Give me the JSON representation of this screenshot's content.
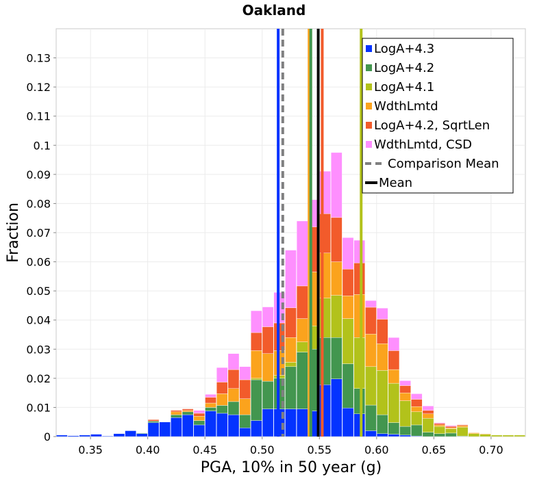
{
  "chart_data": {
    "type": "bar",
    "stacked": true,
    "title": "Oakland",
    "xlabel": "PGA, 10% in 50 year (g)",
    "ylabel": "Fraction",
    "xlim": [
      0.32,
      0.73
    ],
    "ylim": [
      0,
      0.14
    ],
    "x_ticks": [
      "0.35",
      "0.40",
      "0.45",
      "0.50",
      "0.55",
      "0.60",
      "0.65",
      "0.70"
    ],
    "y_ticks": [
      "0",
      "0.01",
      "0.02",
      "0.03",
      "0.04",
      "0.05",
      "0.06",
      "0.07",
      "0.08",
      "0.09",
      "0.1",
      "0.11",
      "0.12",
      "0.13"
    ],
    "grid": true,
    "legend_position": "top-right",
    "bin_width": 0.01,
    "bin_centers": [
      0.325,
      0.335,
      0.345,
      0.355,
      0.365,
      0.375,
      0.385,
      0.395,
      0.405,
      0.415,
      0.425,
      0.435,
      0.445,
      0.455,
      0.465,
      0.475,
      0.485,
      0.495,
      0.505,
      0.515,
      0.525,
      0.535,
      0.545,
      0.555,
      0.565,
      0.575,
      0.585,
      0.595,
      0.605,
      0.615,
      0.625,
      0.635,
      0.645,
      0.655,
      0.665,
      0.675,
      0.685,
      0.695,
      0.705,
      0.715,
      0.725
    ],
    "series": [
      {
        "name": "LogA+4.3",
        "color": "#0433ff",
        "values": [
          0.0005,
          0.0003,
          0.0005,
          0.0008,
          0.0002,
          0.001,
          0.002,
          0.001,
          0.0048,
          0.005,
          0.0065,
          0.0075,
          0.004,
          0.0088,
          0.008,
          0.0075,
          0.003,
          0.0055,
          0.0095,
          0.0095,
          0.0095,
          0.0095,
          0.0088,
          0.0178,
          0.0198,
          0.0098,
          0.0078,
          0.002,
          0.001,
          0.0008,
          0.0005,
          0.0002,
          0,
          0,
          0,
          0,
          0,
          0,
          0,
          0,
          0
        ]
      },
      {
        "name": "LogA+4.2",
        "color": "#43964f",
        "values": [
          0,
          0,
          0,
          0,
          0,
          0,
          0,
          0.0002,
          0.0005,
          0,
          0.001,
          0.001,
          0.0015,
          0.0012,
          0.0027,
          0.0045,
          0.0045,
          0.014,
          0.0095,
          0.0105,
          0.0145,
          0.0195,
          0.0212,
          0.0162,
          0.0142,
          0.0152,
          0.0087,
          0.0088,
          0.0065,
          0.004,
          0.003,
          0.0038,
          0.0015,
          0.001,
          0.0012,
          0.0002,
          0,
          0,
          0,
          0,
          0
        ]
      },
      {
        "name": "LogA+4.1",
        "color": "#b2c21b",
        "values": [
          0,
          0,
          0,
          0,
          0,
          0,
          0,
          0,
          0,
          0,
          0,
          0,
          0,
          0,
          0,
          0,
          0,
          0.0005,
          0,
          0.001,
          0.0015,
          0.0035,
          0.008,
          0.0135,
          0.0145,
          0.0155,
          0.0175,
          0.0132,
          0.0152,
          0.0135,
          0.0088,
          0.0045,
          0.0048,
          0.0025,
          0.0015,
          0.003,
          0.001,
          0.0008,
          0.0005,
          0.0005,
          0.0005
        ]
      },
      {
        "name": "WdthLmtd",
        "color": "#fba31d",
        "values": [
          0,
          0,
          0,
          0,
          0,
          0,
          0,
          0,
          0,
          0,
          0.001,
          0.0005,
          0.0015,
          0.0015,
          0.004,
          0.0045,
          0.0055,
          0.0095,
          0.0095,
          0.0085,
          0.0085,
          0.008,
          0.0185,
          0.0155,
          0.0115,
          0.0078,
          0.0148,
          0.0112,
          0.0092,
          0.0047,
          0.0027,
          0.0018,
          0.0015,
          0.0005,
          0.0003,
          0.0005,
          0.0003,
          0.0002,
          0,
          0,
          0
        ]
      },
      {
        "name": "LogA+4.2, SqrtLen",
        "color": "#f25b2b",
        "values": [
          0,
          0,
          0,
          0,
          0,
          0,
          0,
          0,
          0.0005,
          0,
          0.0005,
          0.0005,
          0.001,
          0.002,
          0.004,
          0.0065,
          0.0065,
          0.0062,
          0.0092,
          0.0095,
          0.0102,
          0.0112,
          0.0155,
          0.0135,
          0.0152,
          0.0092,
          0.0108,
          0.0092,
          0.0084,
          0.0065,
          0.0025,
          0.0025,
          0.0012,
          0.0005,
          0.0005,
          0.0003,
          0,
          0,
          0,
          0,
          0
        ]
      },
      {
        "name": "WdthLmtd, CSD",
        "color": "#fe8ffe",
        "values": [
          0,
          0,
          0,
          0,
          0,
          0,
          0,
          0,
          0,
          0,
          0,
          0,
          0.001,
          0.001,
          0.005,
          0.0055,
          0.0045,
          0.0075,
          0.0068,
          0.0105,
          0.0198,
          0.0223,
          0.0093,
          0.0146,
          0.0223,
          0.0108,
          0.0078,
          0.0023,
          0.0038,
          0.0045,
          0.0017,
          0.0019,
          0.0015,
          0.0003,
          0.0003,
          0,
          0,
          0,
          0,
          0,
          0
        ]
      }
    ],
    "vertical_lines": [
      {
        "name": "LogA+4.3 mean",
        "x": 0.514,
        "color": "#0433ff",
        "dash": false
      },
      {
        "name": "Comparison Mean",
        "x": 0.518,
        "color": "#808080",
        "dash": true
      },
      {
        "name": "WdthLmtd mean",
        "x": 0.541,
        "color": "#fba31d",
        "dash": false
      },
      {
        "name": "LogA+4.2 mean",
        "x": 0.5425,
        "color": "#43964f",
        "dash": false
      },
      {
        "name": "Mean",
        "x": 0.549,
        "color": "#000000",
        "dash": false
      },
      {
        "name": "LogA+4.2, SqrtLen mean",
        "x": 0.5525,
        "color": "#f25b2b",
        "dash": false
      },
      {
        "name": "LogA+4.1 mean",
        "x": 0.5865,
        "color": "#b2c21b",
        "dash": false
      }
    ],
    "legend": [
      {
        "label": "LogA+4.3",
        "color": "#0433ff",
        "kind": "box"
      },
      {
        "label": "LogA+4.2",
        "color": "#43964f",
        "kind": "box"
      },
      {
        "label": "LogA+4.1",
        "color": "#b2c21b",
        "kind": "box"
      },
      {
        "label": "WdthLmtd",
        "color": "#fba31d",
        "kind": "box"
      },
      {
        "label": "LogA+4.2, SqrtLen",
        "color": "#f25b2b",
        "kind": "box"
      },
      {
        "label": "WdthLmtd, CSD",
        "color": "#fe8ffe",
        "kind": "box"
      },
      {
        "label": "Comparison Mean",
        "color": "#808080",
        "kind": "dash"
      },
      {
        "label": "Mean",
        "color": "#000000",
        "kind": "line"
      }
    ]
  }
}
